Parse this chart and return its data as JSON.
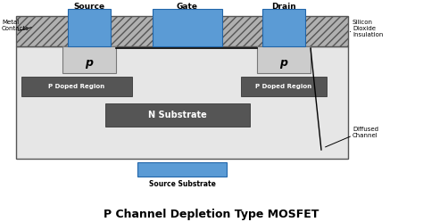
{
  "title": "P Channel Depletion Type MOSFET",
  "title_fontsize": 9,
  "bg_color": "#ffffff",
  "substrate_color": "#e6e6e6",
  "metal_contact_color": "#5b9bd5",
  "gate_color": "#5b9bd5",
  "p_doped_color": "#555555",
  "n_substrate_color": "#555555",
  "hatch_facecolor": "#b0b0b0",
  "source_substrate_color": "#5b9bd5",
  "p_region_color": "#cccccc",
  "labels": {
    "source": "Source",
    "gate": "Gate",
    "drain": "Drain",
    "metal_contacts": "Metal\nContacts",
    "silicon_dioxide": "Silicon\nDioxide\nInsulation",
    "p_left": "p",
    "p_right": "p",
    "p_doped_left": "P Doped Region",
    "p_doped_right": "P Doped Region",
    "n_substrate": "N Substrate",
    "source_substrate": "Source Substrate",
    "diffused_channel": "Diffused\nChannel"
  }
}
